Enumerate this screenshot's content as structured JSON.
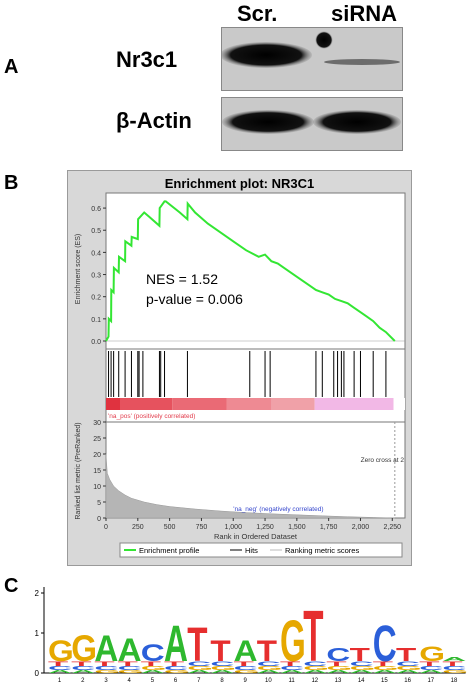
{
  "panel_a": {
    "letter": "A",
    "columns": [
      "Scr.",
      "siRNA"
    ],
    "rows": [
      "Nr3c1",
      "β-Actin"
    ]
  },
  "panel_b": {
    "letter": "B",
    "title": "Enrichment plot: NR3C1",
    "nes": "NES = 1.52",
    "pvalue": "p-value = 0.006",
    "ylabel_top": "Enrichment score (ES)",
    "ylabel_bottom": "Ranked list metric (PreRanked)",
    "xlabel": "Rank in Ordered Dataset",
    "pos_label": "'na_pos' (positively correlated)",
    "neg_label": "'na_neg' (negatively correlated)",
    "zero_cross": "Zero cross at 2",
    "legend": [
      "Enrichment profile",
      "Hits",
      "Ranking metric scores"
    ],
    "colors": {
      "es_line": "#33e633",
      "pos": "#e23b4b",
      "neg": "#f2b8e6",
      "metric_fill": "#b5b5b5"
    }
  },
  "panel_c": {
    "letter": "C",
    "y_ticks": [
      "0",
      "1",
      "2"
    ],
    "x_ticks": [
      "1",
      "2",
      "3",
      "4",
      "5",
      "6",
      "7",
      "8",
      "9",
      "10",
      "11",
      "12",
      "13",
      "14",
      "15",
      "16",
      "17",
      "18"
    ],
    "letters": [
      "G",
      "G",
      "A",
      "A",
      "C",
      "A",
      "T",
      "T",
      "A",
      "T",
      "G",
      "T",
      "C",
      "T",
      "G",
      "A"
    ]
  },
  "chart_data": [
    {
      "type": "line",
      "title": "Enrichment plot: NR3C1",
      "xlabel": "Rank in Ordered Dataset",
      "ylabel": "Enrichment score (ES)",
      "xlim": [
        0,
        2350
      ],
      "ylim": [
        0,
        0.65
      ],
      "x_ticks": [
        "0",
        "250",
        "500",
        "750",
        "1,000",
        "1,250",
        "1,500",
        "1,750",
        "2,000",
        "2,250"
      ],
      "y_ticks": [
        "0.0",
        "0.1",
        "0.2",
        "0.3",
        "0.4",
        "0.5",
        "0.6"
      ],
      "series": [
        {
          "name": "Enrichment profile",
          "x": [
            0,
            20,
            22,
            40,
            42,
            60,
            62,
            100,
            102,
            150,
            152,
            200,
            202,
            250,
            252,
            300,
            340,
            420,
            422,
            460,
            470,
            580,
            640,
            642,
            700,
            800,
            900,
            1000,
            1100,
            1200,
            1250,
            1300,
            1350,
            1400,
            1500,
            1600,
            1650,
            1700,
            1750,
            1800,
            1850,
            1900,
            1950,
            2000,
            2050,
            2100,
            2150,
            2200,
            2270
          ],
          "y": [
            0.0,
            0.02,
            0.1,
            0.09,
            0.23,
            0.22,
            0.33,
            0.31,
            0.38,
            0.36,
            0.45,
            0.43,
            0.47,
            0.46,
            0.55,
            0.58,
            0.56,
            0.52,
            0.6,
            0.63,
            0.63,
            0.58,
            0.55,
            0.62,
            0.58,
            0.53,
            0.49,
            0.45,
            0.41,
            0.38,
            0.39,
            0.36,
            0.35,
            0.33,
            0.29,
            0.25,
            0.23,
            0.22,
            0.21,
            0.19,
            0.18,
            0.17,
            0.15,
            0.13,
            0.11,
            0.09,
            0.06,
            0.04,
            0.0
          ]
        }
      ],
      "hits": [
        20,
        40,
        60,
        100,
        150,
        200,
        250,
        260,
        290,
        420,
        430,
        460,
        640,
        1130,
        1250,
        1290,
        1650,
        1700,
        1790,
        1820,
        1850,
        1870,
        1950,
        2000,
        2100,
        2200
      ]
    },
    {
      "type": "area",
      "title": "",
      "xlabel": "Rank in Ordered Dataset",
      "ylabel": "Ranked list metric (PreRanked)",
      "xlim": [
        0,
        2350
      ],
      "ylim": [
        0,
        30
      ],
      "y_ticks": [
        "0",
        "5",
        "10",
        "15",
        "20",
        "25",
        "30"
      ],
      "series": [
        {
          "name": "Ranking metric scores",
          "x": [
            0,
            10,
            30,
            60,
            100,
            150,
            200,
            300,
            400,
            500,
            700,
            900,
            1100,
            1300,
            1500,
            1700,
            1900,
            2100,
            2270
          ],
          "y": [
            20,
            14,
            12,
            10,
            8.5,
            7.2,
            6.2,
            5.0,
            4.2,
            3.6,
            2.8,
            2.2,
            1.7,
            1.3,
            1.0,
            0.7,
            0.4,
            0.2,
            0.0
          ]
        }
      ]
    }
  ]
}
